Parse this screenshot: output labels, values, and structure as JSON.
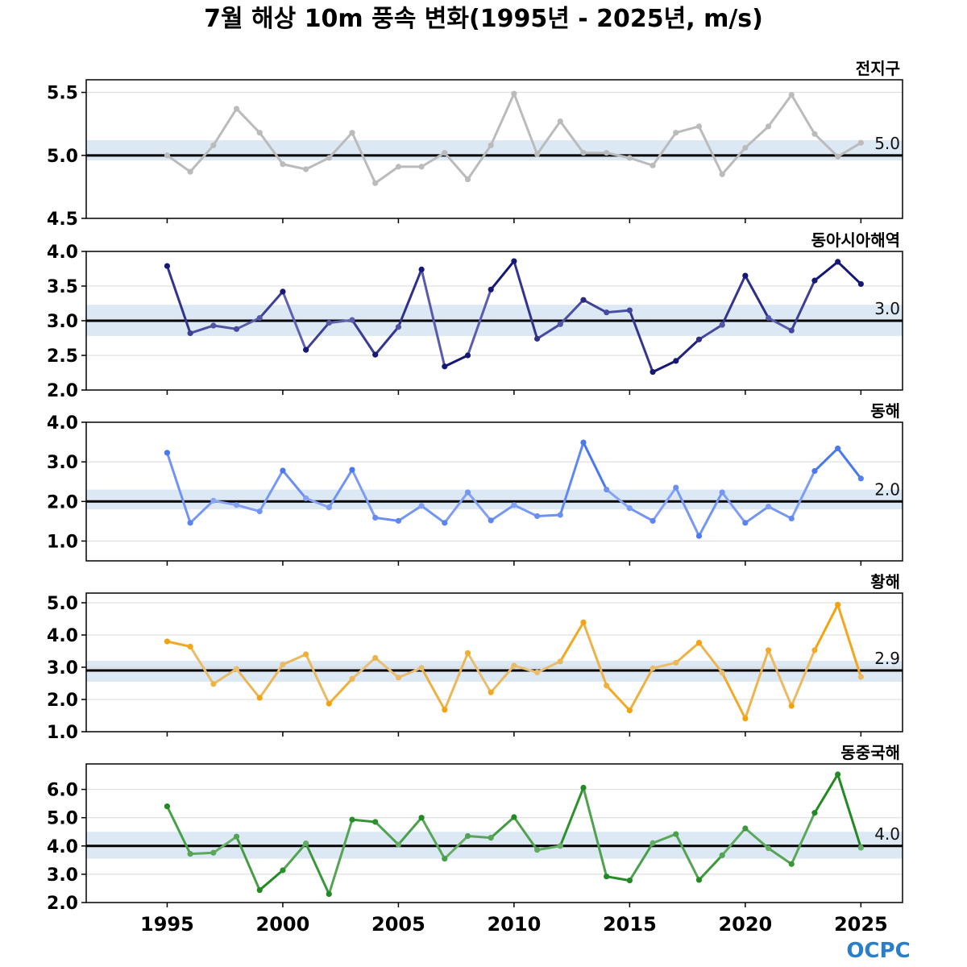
{
  "title": "7월 해상 10m 풍속 변화(1995년 - 2025년, m/s)",
  "logo": "OCPC",
  "logo_color": "#2a7fc8",
  "band_color": "#dce8f4",
  "chart_data": {
    "type": "line",
    "x": [
      1995,
      1996,
      1997,
      1998,
      1999,
      2000,
      2001,
      2002,
      2003,
      2004,
      2005,
      2006,
      2007,
      2008,
      2009,
      2010,
      2011,
      2012,
      2013,
      2014,
      2015,
      2016,
      2017,
      2018,
      2019,
      2020,
      2021,
      2022,
      2023,
      2024,
      2025
    ],
    "x_ticks": [
      1995,
      2000,
      2005,
      2010,
      2015,
      2020,
      2025
    ],
    "xlim": [
      1991.5,
      2026.8
    ],
    "panels": [
      {
        "name": "전지구",
        "color": "#bbbbbb",
        "light_color": "#bbbbbb",
        "ylim": [
          4.5,
          5.6
        ],
        "y_ticks": [
          4.5,
          5.0,
          5.5
        ],
        "y_tick_labels": [
          "4.5",
          "5.0",
          "5.5"
        ],
        "mean": 5.0,
        "mean_label": "5.0",
        "band": [
          4.96,
          5.12
        ],
        "values": [
          5.0,
          4.87,
          5.08,
          5.37,
          5.18,
          4.93,
          4.89,
          4.98,
          5.18,
          4.78,
          4.91,
          4.91,
          5.02,
          4.81,
          5.08,
          5.49,
          5.01,
          5.27,
          5.02,
          5.02,
          4.98,
          4.92,
          5.18,
          5.23,
          4.85,
          5.06,
          5.23,
          5.48,
          5.17,
          4.99,
          5.1
        ]
      },
      {
        "name": "동아시아해역",
        "color": "#161876",
        "light_color": "#5e60b0",
        "ylim": [
          2.0,
          4.0
        ],
        "y_ticks": [
          2.0,
          2.5,
          3.0,
          3.5,
          4.0
        ],
        "y_tick_labels": [
          "2.0",
          "2.5",
          "3.0",
          "3.5",
          "4.0"
        ],
        "mean": 3.0,
        "mean_label": "3.0",
        "band": [
          2.78,
          3.23
        ],
        "values": [
          3.79,
          2.82,
          2.93,
          2.88,
          3.04,
          3.42,
          2.58,
          2.97,
          3.01,
          2.51,
          2.91,
          3.74,
          2.34,
          2.5,
          3.45,
          3.86,
          2.74,
          2.95,
          3.3,
          3.12,
          3.15,
          2.26,
          2.42,
          2.73,
          2.94,
          3.65,
          3.04,
          2.86,
          3.58,
          3.85,
          3.53
        ]
      },
      {
        "name": "동해",
        "color": "#4a78ee",
        "light_color": "#8aa6f4",
        "ylim": [
          0.5,
          4.0
        ],
        "y_ticks": [
          1.0,
          2.0,
          3.0,
          4.0
        ],
        "y_tick_labels": [
          "1.0",
          "2.0",
          "3.0",
          "4.0"
        ],
        "mean": 2.0,
        "mean_label": "2.0",
        "band": [
          1.8,
          2.3
        ],
        "values": [
          3.23,
          1.46,
          2.02,
          1.91,
          1.75,
          2.78,
          2.08,
          1.85,
          2.8,
          1.59,
          1.51,
          1.89,
          1.46,
          2.23,
          1.52,
          1.91,
          1.63,
          1.66,
          3.49,
          2.3,
          1.83,
          1.51,
          2.35,
          1.13,
          2.23,
          1.46,
          1.87,
          1.57,
          2.77,
          3.34,
          2.58
        ]
      },
      {
        "name": "황해",
        "color": "#f4a30e",
        "light_color": "#e8c07a",
        "ylim": [
          1.0,
          5.3
        ],
        "y_ticks": [
          1.0,
          2.0,
          3.0,
          4.0,
          5.0
        ],
        "y_tick_labels": [
          "1.0",
          "2.0",
          "3.0",
          "4.0",
          "5.0"
        ],
        "mean": 2.9,
        "mean_label": "2.9",
        "band": [
          2.55,
          3.2
        ],
        "values": [
          3.8,
          3.64,
          2.48,
          2.95,
          2.05,
          3.08,
          3.4,
          1.87,
          2.64,
          3.29,
          2.68,
          2.98,
          1.68,
          3.44,
          2.22,
          3.05,
          2.84,
          3.18,
          4.39,
          2.43,
          1.66,
          2.97,
          3.14,
          3.76,
          2.83,
          1.41,
          3.53,
          1.8,
          3.53,
          4.94,
          2.7
        ]
      },
      {
        "name": "동중국해",
        "color": "#238a23",
        "light_color": "#6ab06a",
        "ylim": [
          2.0,
          6.9
        ],
        "y_ticks": [
          2.0,
          3.0,
          4.0,
          5.0,
          6.0
        ],
        "y_tick_labels": [
          "2.0",
          "3.0",
          "4.0",
          "5.0",
          "6.0"
        ],
        "mean": 4.0,
        "mean_label": "4.0",
        "band": [
          3.55,
          4.5
        ],
        "values": [
          5.4,
          3.72,
          3.76,
          4.33,
          2.44,
          3.14,
          4.09,
          2.3,
          4.93,
          4.85,
          4.05,
          5.0,
          3.55,
          4.35,
          4.29,
          5.02,
          3.86,
          4.0,
          6.06,
          2.92,
          2.78,
          4.1,
          4.42,
          2.8,
          3.67,
          4.62,
          3.92,
          3.36,
          5.17,
          6.53,
          3.94
        ]
      }
    ]
  }
}
